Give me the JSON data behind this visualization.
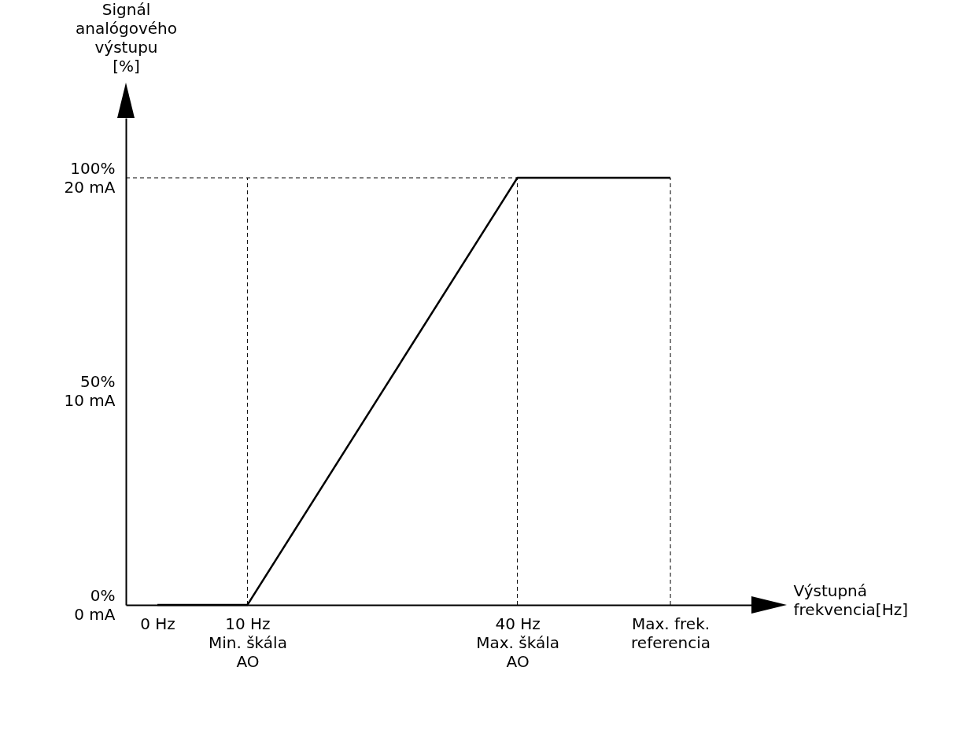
{
  "chart_data": {
    "type": "line",
    "xlabel": "Výstupná\nfrekvencia[Hz]",
    "ylabel": "Signál\nanalógového\nvýstupu\n[%]",
    "x": [
      0,
      10,
      40,
      57
    ],
    "series": [
      {
        "color": "#000000",
        "values": [
          0,
          0,
          100,
          100
        ]
      }
    ],
    "xlim": [
      -3.5,
      66
    ],
    "ylim": [
      0,
      114
    ],
    "y2lim": [
      0,
      22.8
    ],
    "y2ticks": [
      {
        "value": 0,
        "label": "0 mA"
      },
      {
        "value": 10,
        "label": "10 mA"
      },
      {
        "value": 20,
        "label": "20 mA"
      }
    ],
    "xticks": [
      {
        "value": 0,
        "label": "0 Hz"
      },
      {
        "value": 10,
        "label": "10 Hz\nMin. škála\nAO"
      },
      {
        "value": 40,
        "label": "40 Hz\nMax. škála\nAO"
      },
      {
        "value": 57,
        "label": "Max. frek.\nreferencia"
      }
    ],
    "yticks": [
      {
        "value": 0,
        "label": "0%"
      },
      {
        "value": 50,
        "label": "50%"
      },
      {
        "value": 100,
        "label": "100%"
      }
    ],
    "ref_lines": [
      {
        "axis": "x",
        "value": 10,
        "line_style": "dashed"
      },
      {
        "axis": "x",
        "value": 40,
        "line_style": "dashed"
      },
      {
        "axis": "x",
        "value": 57,
        "line_style": "dashed"
      },
      {
        "axis": "y",
        "value": 100,
        "line_style": "dashed"
      }
    ],
    "grid": false,
    "marker": "none",
    "line_style": "solid"
  }
}
